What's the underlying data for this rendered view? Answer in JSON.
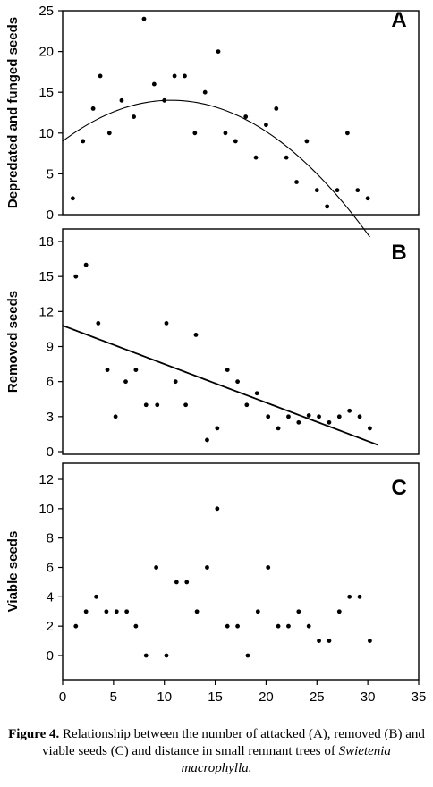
{
  "chart_data": [
    {
      "type": "scatter",
      "panel_label": "A",
      "ylabel": "Depredated and funged seeds",
      "xlim": [
        0,
        35
      ],
      "ylim": [
        0,
        25
      ],
      "yticks": [
        0,
        5,
        10,
        15,
        20,
        25
      ],
      "points": [
        {
          "x": 1,
          "y": 2
        },
        {
          "x": 2,
          "y": 9
        },
        {
          "x": 3,
          "y": 13
        },
        {
          "x": 3.7,
          "y": 17
        },
        {
          "x": 4.6,
          "y": 10
        },
        {
          "x": 5.8,
          "y": 14
        },
        {
          "x": 7,
          "y": 12
        },
        {
          "x": 8,
          "y": 24
        },
        {
          "x": 9,
          "y": 16
        },
        {
          "x": 10,
          "y": 14
        },
        {
          "x": 11,
          "y": 17
        },
        {
          "x": 12,
          "y": 17
        },
        {
          "x": 13,
          "y": 10
        },
        {
          "x": 14,
          "y": 15
        },
        {
          "x": 15.3,
          "y": 20
        },
        {
          "x": 16,
          "y": 10
        },
        {
          "x": 17,
          "y": 9
        },
        {
          "x": 18,
          "y": 12
        },
        {
          "x": 19,
          "y": 7
        },
        {
          "x": 20,
          "y": 11
        },
        {
          "x": 21,
          "y": 13
        },
        {
          "x": 22,
          "y": 7
        },
        {
          "x": 23,
          "y": 4
        },
        {
          "x": 24,
          "y": 9
        },
        {
          "x": 25,
          "y": 3
        },
        {
          "x": 26,
          "y": 1
        },
        {
          "x": 27,
          "y": 3
        },
        {
          "x": 28,
          "y": 10
        },
        {
          "x": 29,
          "y": 3
        },
        {
          "x": 30,
          "y": 2
        }
      ],
      "fit": {
        "kind": "quadratic",
        "coef": [
          9,
          0.94,
          -0.044
        ],
        "x_range": [
          0,
          30.2
        ]
      }
    },
    {
      "type": "scatter",
      "panel_label": "B",
      "ylabel": "Removed seeds",
      "xlim": [
        0,
        35
      ],
      "ylim": [
        0,
        18
      ],
      "yticks": [
        0,
        3,
        6,
        9,
        12,
        15,
        18
      ],
      "points": [
        {
          "x": 1.3,
          "y": 15
        },
        {
          "x": 2.3,
          "y": 16
        },
        {
          "x": 3.5,
          "y": 11
        },
        {
          "x": 4.4,
          "y": 7
        },
        {
          "x": 5.2,
          "y": 3
        },
        {
          "x": 6.2,
          "y": 6
        },
        {
          "x": 7.2,
          "y": 7
        },
        {
          "x": 8.2,
          "y": 4
        },
        {
          "x": 9.3,
          "y": 4
        },
        {
          "x": 10.2,
          "y": 11
        },
        {
          "x": 11.1,
          "y": 6
        },
        {
          "x": 12.1,
          "y": 4
        },
        {
          "x": 13.1,
          "y": 10
        },
        {
          "x": 14.2,
          "y": 1
        },
        {
          "x": 15.2,
          "y": 2
        },
        {
          "x": 16.2,
          "y": 7
        },
        {
          "x": 17.2,
          "y": 6
        },
        {
          "x": 18.1,
          "y": 4
        },
        {
          "x": 19.1,
          "y": 5
        },
        {
          "x": 20.2,
          "y": 3
        },
        {
          "x": 21.2,
          "y": 2
        },
        {
          "x": 22.2,
          "y": 3
        },
        {
          "x": 23.2,
          "y": 2.5
        },
        {
          "x": 24.2,
          "y": 3.1
        },
        {
          "x": 25.2,
          "y": 3
        },
        {
          "x": 26.2,
          "y": 2.5
        },
        {
          "x": 27.2,
          "y": 3
        },
        {
          "x": 28.2,
          "y": 3.5
        },
        {
          "x": 29.2,
          "y": 3
        },
        {
          "x": 30.2,
          "y": 2
        }
      ],
      "fit": {
        "kind": "linear",
        "coef": [
          10.8,
          -0.33
        ],
        "x_range": [
          0,
          31
        ]
      }
    },
    {
      "type": "scatter",
      "panel_label": "C",
      "ylabel": "Viable seeds",
      "xlim": [
        0,
        35
      ],
      "ylim": [
        -1,
        12
      ],
      "yticks": [
        0,
        2,
        4,
        6,
        8,
        10,
        12
      ],
      "xticks": [
        0,
        5,
        10,
        15,
        20,
        25,
        30,
        35
      ],
      "points": [
        {
          "x": 1.3,
          "y": 2
        },
        {
          "x": 2.3,
          "y": 3
        },
        {
          "x": 3.3,
          "y": 4
        },
        {
          "x": 4.3,
          "y": 3
        },
        {
          "x": 5.3,
          "y": 3
        },
        {
          "x": 6.3,
          "y": 3
        },
        {
          "x": 7.2,
          "y": 2
        },
        {
          "x": 8.2,
          "y": 0
        },
        {
          "x": 9.2,
          "y": 6
        },
        {
          "x": 10.2,
          "y": 0
        },
        {
          "x": 11.2,
          "y": 5
        },
        {
          "x": 12.2,
          "y": 5
        },
        {
          "x": 13.2,
          "y": 3
        },
        {
          "x": 14.2,
          "y": 6
        },
        {
          "x": 15.2,
          "y": 10
        },
        {
          "x": 16.2,
          "y": 2
        },
        {
          "x": 17.2,
          "y": 2
        },
        {
          "x": 18.2,
          "y": 0
        },
        {
          "x": 19.2,
          "y": 3
        },
        {
          "x": 20.2,
          "y": 6
        },
        {
          "x": 21.2,
          "y": 2
        },
        {
          "x": 22.2,
          "y": 2
        },
        {
          "x": 23.2,
          "y": 3
        },
        {
          "x": 24.2,
          "y": 2
        },
        {
          "x": 25.2,
          "y": 1
        },
        {
          "x": 26.2,
          "y": 1
        },
        {
          "x": 27.2,
          "y": 3
        },
        {
          "x": 28.2,
          "y": 4
        },
        {
          "x": 29.2,
          "y": 4
        },
        {
          "x": 30.2,
          "y": 1
        }
      ]
    }
  ],
  "caption": {
    "label": "Figure 4.",
    "text": " Relationship between the number of attacked (A), removed (B) and viable seeds (C) and distance in small remnant trees of ",
    "species": "Swietenia macrophylla."
  }
}
